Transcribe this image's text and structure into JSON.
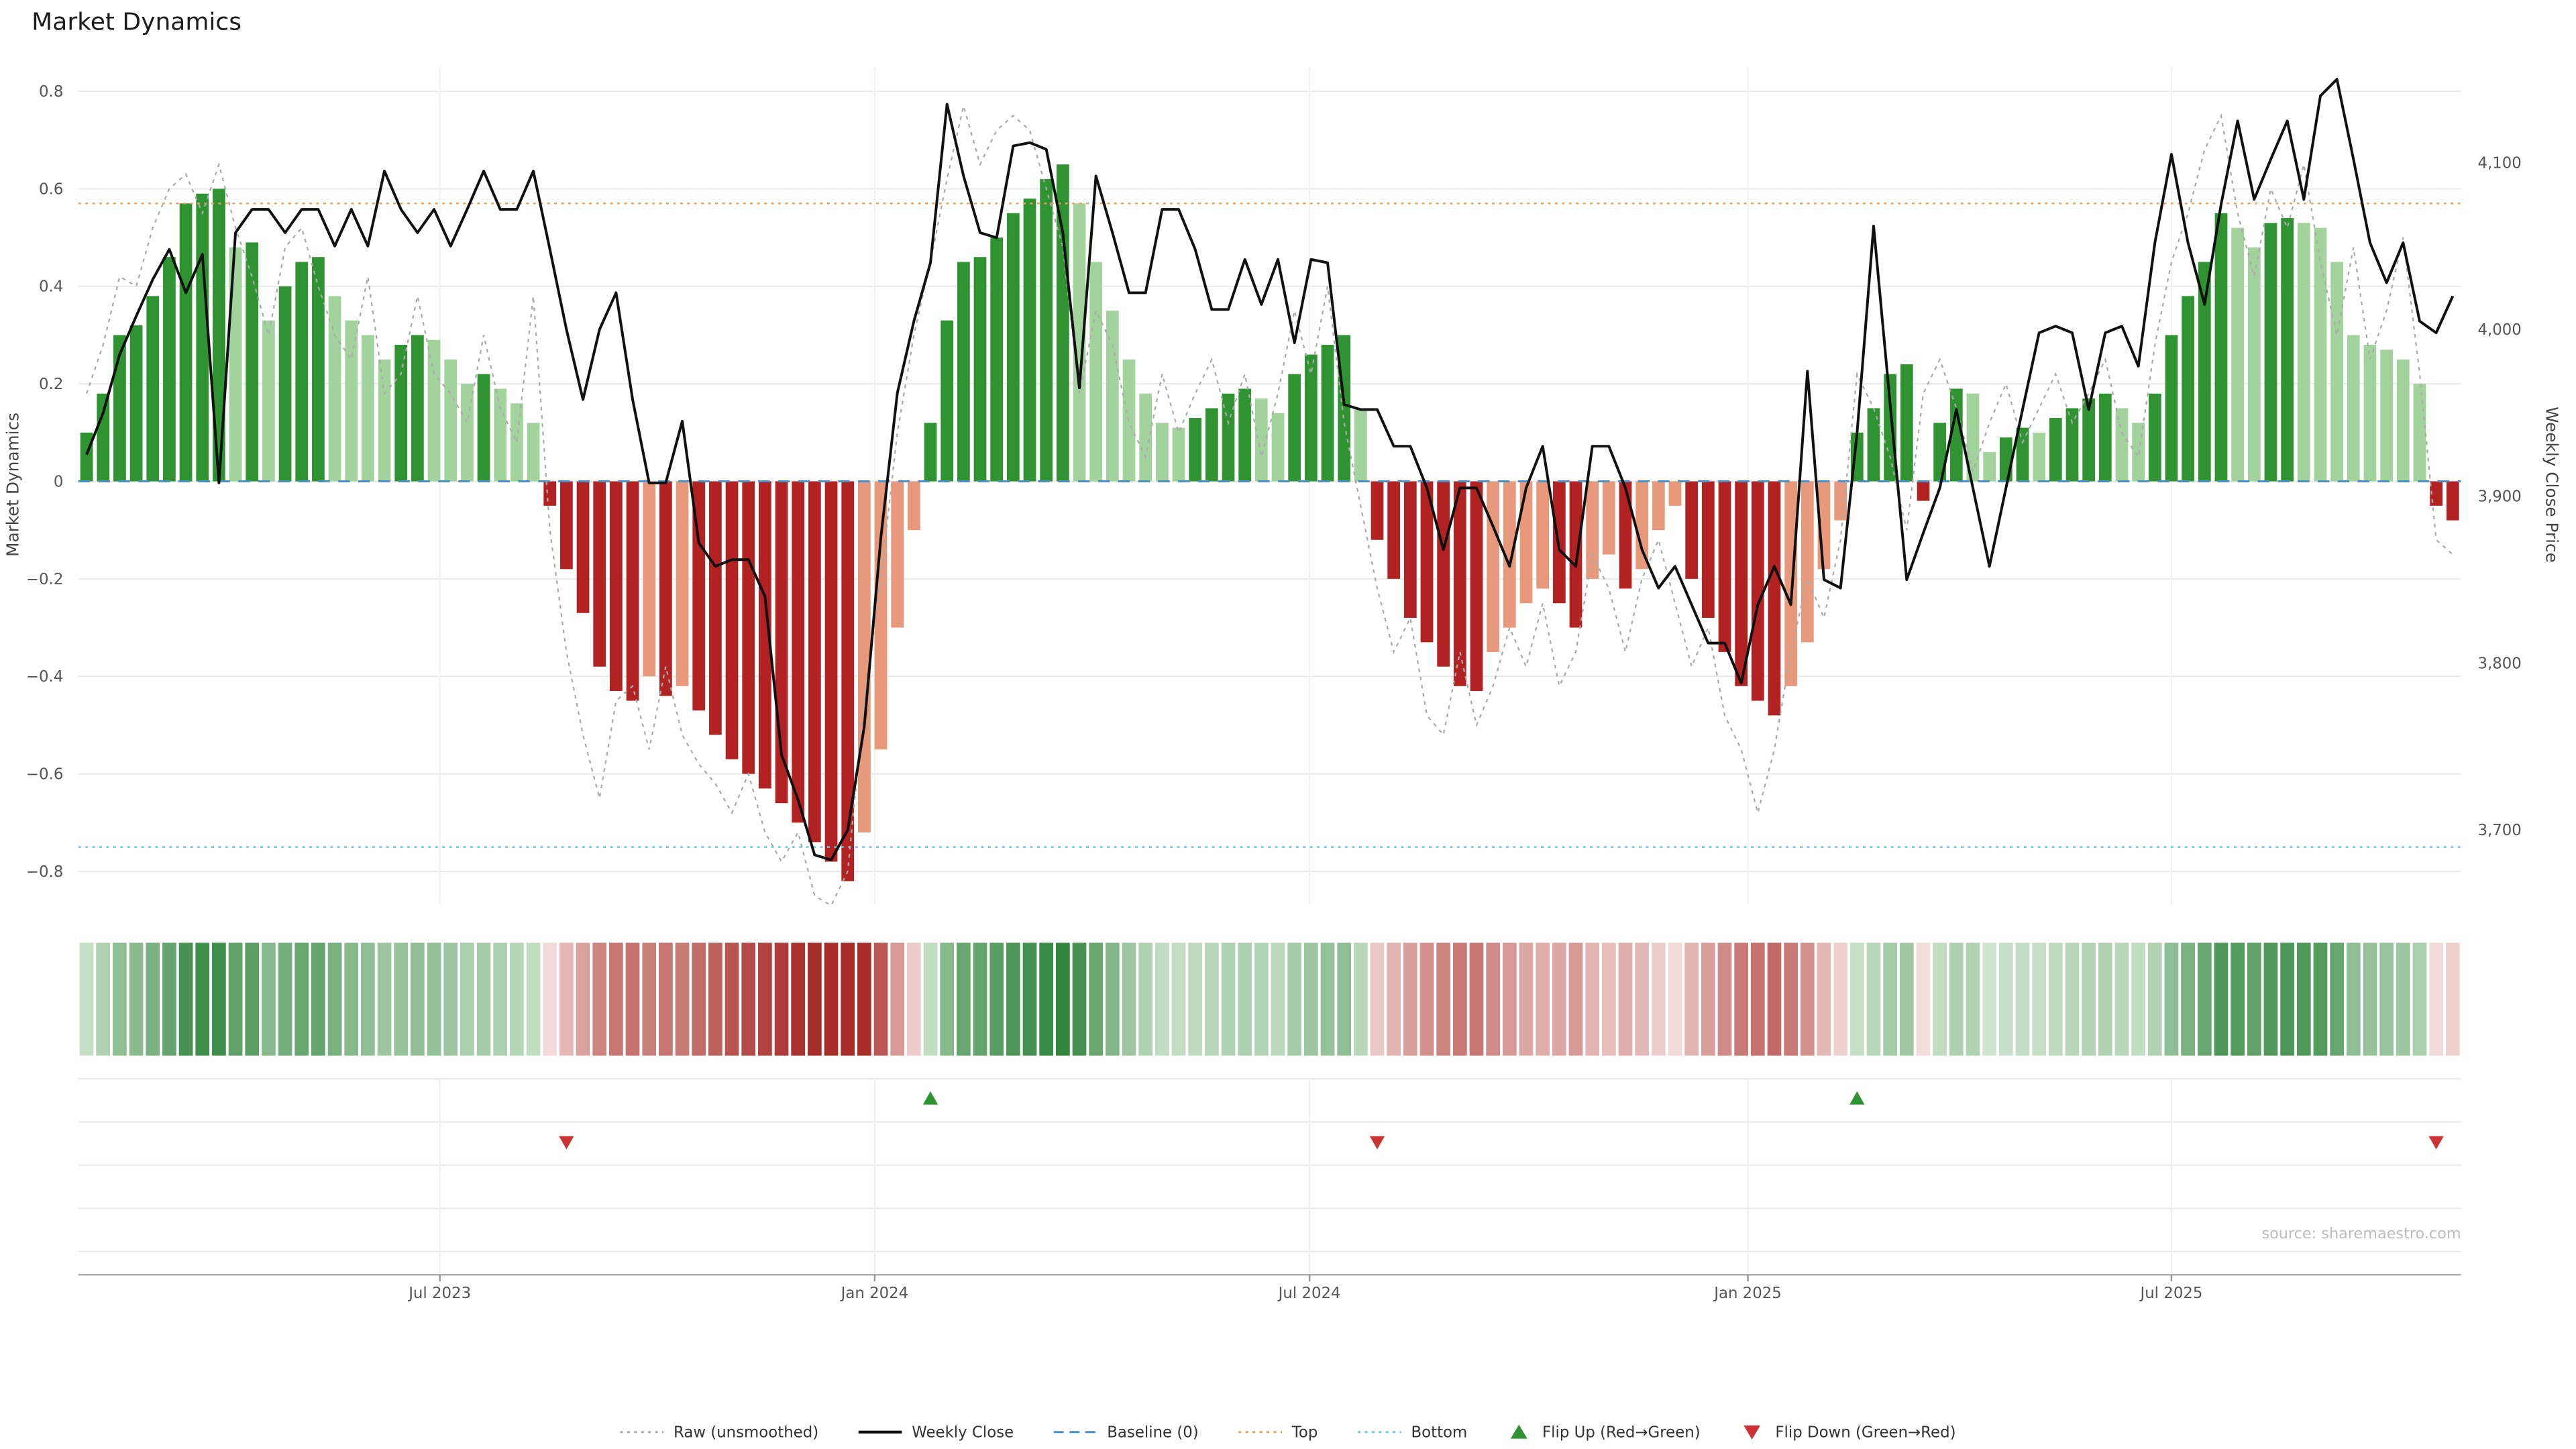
{
  "title": "Market Dynamics",
  "source": "source: sharemaestro.com",
  "legend": {
    "items": [
      {
        "label": "Raw (unsmoothed)",
        "type": "dotted-line",
        "color": "#aaaaaa",
        "icon": "raw-line-icon"
      },
      {
        "label": "Weekly Close",
        "type": "solid-line",
        "color": "#111111",
        "icon": "weekly-close-line-icon"
      },
      {
        "label": "Baseline (0)",
        "type": "dashed-line",
        "color": "#4a90c4",
        "icon": "baseline-line-icon"
      },
      {
        "label": "Top",
        "type": "dotted-line",
        "color": "#e2a566",
        "icon": "top-line-icon"
      },
      {
        "label": "Bottom",
        "type": "dotted-line",
        "color": "#70c6de",
        "icon": "bottom-line-icon"
      },
      {
        "label": "Flip Up (Red→Green)",
        "type": "triangle-up",
        "color": "#2f9331",
        "icon": "flip-up-icon"
      },
      {
        "label": "Flip Down (Green→Red)",
        "type": "triangle-down",
        "color": "#cc3333",
        "icon": "flip-down-icon"
      }
    ]
  },
  "chart_data": {
    "type": "bar",
    "title": "Market Dynamics",
    "ylabel": "Market Dynamics",
    "y2label": "Weekly Close Price",
    "ylim": [
      -0.87,
      0.85
    ],
    "y2lim": [
      3660,
      4158
    ],
    "grid": true,
    "legend_position": "bottom",
    "yticks": [
      {
        "v": 0.8,
        "label": "0.8"
      },
      {
        "v": 0.6,
        "label": "0.6"
      },
      {
        "v": 0.4,
        "label": "0.4"
      },
      {
        "v": 0.2,
        "label": "0.2"
      },
      {
        "v": 0,
        "label": "0"
      },
      {
        "v": -0.2,
        "label": "−0.2"
      },
      {
        "v": -0.4,
        "label": "−0.4"
      },
      {
        "v": -0.6,
        "label": "−0.6"
      },
      {
        "v": -0.8,
        "label": "−0.8"
      }
    ],
    "y2ticks": [
      {
        "v": 4100,
        "label": "4,100"
      },
      {
        "v": 4000,
        "label": "4,000"
      },
      {
        "v": 3900,
        "label": "3,900"
      },
      {
        "v": 3800,
        "label": "3,800"
      },
      {
        "v": 3700,
        "label": "3,700"
      }
    ],
    "xticks": [
      {
        "label": "Jul 2023",
        "i": 21.85
      },
      {
        "label": "Jan 2024",
        "i": 48.13
      },
      {
        "label": "Jul 2024",
        "i": 74.41
      },
      {
        "label": "Jan 2025",
        "i": 100.9
      },
      {
        "label": "Jul 2025",
        "i": 126.5
      }
    ],
    "baseline": 0,
    "top_threshold": 0.57,
    "bottom_threshold": -0.75,
    "flip_up_indices": [
      51,
      107
    ],
    "flip_down_indices": [
      29,
      78,
      142
    ],
    "colors": {
      "pos_strong": "#2f9331",
      "pos_weak": "#a3d39c",
      "neg_strong": "#b22222",
      "neg_weak": "#e8997b",
      "close": "#111111",
      "raw": "#aaaaaa",
      "baseline": "#4a90c4",
      "top": "#e2a566",
      "bottom": "#70c6de",
      "flip_up": "#2f9331",
      "flip_down": "#cc3333"
    },
    "series": {
      "bars": [
        0.1,
        0.18,
        0.3,
        0.32,
        0.38,
        0.46,
        0.57,
        0.59,
        0.6,
        0.48,
        0.49,
        0.33,
        0.4,
        0.45,
        0.46,
        0.38,
        0.33,
        0.3,
        0.25,
        0.28,
        0.3,
        0.29,
        0.25,
        0.2,
        0.22,
        0.19,
        0.16,
        0.12,
        -0.05,
        -0.18,
        -0.27,
        -0.38,
        -0.43,
        -0.45,
        -0.4,
        -0.44,
        -0.42,
        -0.47,
        -0.52,
        -0.57,
        -0.6,
        -0.63,
        -0.66,
        -0.7,
        -0.74,
        -0.78,
        -0.82,
        -0.72,
        -0.55,
        -0.3,
        -0.1,
        0.12,
        0.33,
        0.45,
        0.46,
        0.5,
        0.55,
        0.58,
        0.62,
        0.65,
        0.57,
        0.45,
        0.35,
        0.25,
        0.18,
        0.12,
        0.11,
        0.13,
        0.15,
        0.18,
        0.19,
        0.17,
        0.14,
        0.22,
        0.26,
        0.28,
        0.3,
        0.15,
        -0.12,
        -0.2,
        -0.28,
        -0.33,
        -0.38,
        -0.42,
        -0.43,
        -0.35,
        -0.3,
        -0.25,
        -0.22,
        -0.25,
        -0.3,
        -0.2,
        -0.15,
        -0.22,
        -0.18,
        -0.1,
        -0.05,
        -0.2,
        -0.28,
        -0.35,
        -0.42,
        -0.45,
        -0.48,
        -0.42,
        -0.33,
        -0.18,
        -0.08,
        0.1,
        0.15,
        0.22,
        0.24,
        -0.04,
        0.12,
        0.19,
        0.18,
        0.06,
        0.09,
        0.11,
        0.1,
        0.13,
        0.15,
        0.17,
        0.18,
        0.15,
        0.12,
        0.18,
        0.3,
        0.38,
        0.45,
        0.55,
        0.52,
        0.48,
        0.53,
        0.54,
        0.53,
        0.52,
        0.45,
        0.3,
        0.28,
        0.27,
        0.25,
        0.2,
        -0.05,
        -0.08
      ],
      "weekly_close": [
        3925,
        3950,
        3985,
        4008,
        4030,
        4048,
        4022,
        4045,
        3908,
        4058,
        4072,
        4072,
        4058,
        4072,
        4072,
        4050,
        4072,
        4050,
        4095,
        4072,
        4058,
        4072,
        4050,
        4072,
        4095,
        4072,
        4072,
        4095,
        4048,
        4000,
        3958,
        4000,
        4022,
        3958,
        3908,
        3908,
        3945,
        3872,
        3858,
        3862,
        3862,
        3840,
        3745,
        3718,
        3685,
        3682,
        3700,
        3762,
        3875,
        3962,
        4005,
        4040,
        4135,
        4092,
        4058,
        4055,
        4110,
        4112,
        4108,
        4058,
        3965,
        4092,
        4058,
        4022,
        4022,
        4072,
        4072,
        4048,
        4012,
        4012,
        4042,
        4015,
        4042,
        3992,
        4042,
        4040,
        3955,
        3952,
        3952,
        3930,
        3930,
        3905,
        3868,
        3905,
        3905,
        3882,
        3858,
        3905,
        3930,
        3868,
        3858,
        3930,
        3930,
        3905,
        3868,
        3845,
        3858,
        3835,
        3812,
        3812,
        3788,
        3835,
        3858,
        3835,
        3975,
        3850,
        3845,
        3938,
        4062,
        3955,
        3850,
        3878,
        3905,
        3952,
        3905,
        3858,
        3905,
        3952,
        3998,
        4002,
        3998,
        3952,
        3998,
        4002,
        3978,
        4052,
        4105,
        4052,
        4015,
        4075,
        4125,
        4078,
        4102,
        4125,
        4078,
        4140,
        4150,
        4102,
        4052,
        4028,
        4052,
        4005,
        3998,
        4020
      ],
      "raw": [
        0.18,
        0.28,
        0.42,
        0.4,
        0.52,
        0.6,
        0.63,
        0.55,
        0.65,
        0.52,
        0.42,
        0.3,
        0.48,
        0.52,
        0.4,
        0.3,
        0.25,
        0.42,
        0.18,
        0.22,
        0.38,
        0.22,
        0.18,
        0.12,
        0.3,
        0.15,
        0.08,
        0.38,
        -0.1,
        -0.35,
        -0.52,
        -0.65,
        -0.45,
        -0.42,
        -0.55,
        -0.38,
        -0.52,
        -0.58,
        -0.62,
        -0.68,
        -0.6,
        -0.72,
        -0.78,
        -0.72,
        -0.85,
        -0.87,
        -0.8,
        -0.45,
        -0.2,
        0.1,
        0.3,
        0.45,
        0.62,
        0.77,
        0.65,
        0.72,
        0.75,
        0.72,
        0.6,
        0.48,
        0.18,
        0.35,
        0.28,
        0.12,
        0.05,
        0.22,
        0.1,
        0.18,
        0.25,
        0.12,
        0.22,
        0.05,
        0.18,
        0.35,
        0.22,
        0.4,
        0.12,
        -0.05,
        -0.22,
        -0.35,
        -0.28,
        -0.48,
        -0.52,
        -0.35,
        -0.5,
        -0.42,
        -0.3,
        -0.38,
        -0.25,
        -0.42,
        -0.35,
        -0.15,
        -0.22,
        -0.35,
        -0.2,
        -0.12,
        -0.25,
        -0.38,
        -0.3,
        -0.48,
        -0.55,
        -0.68,
        -0.55,
        -0.35,
        -0.2,
        -0.28,
        -0.12,
        0.22,
        0.15,
        0.05,
        -0.1,
        0.18,
        0.25,
        0.15,
        0.02,
        0.12,
        0.2,
        0.08,
        0.15,
        0.22,
        0.12,
        0.18,
        0.25,
        0.1,
        0.05,
        0.28,
        0.45,
        0.55,
        0.68,
        0.75,
        0.55,
        0.42,
        0.6,
        0.52,
        0.65,
        0.45,
        0.3,
        0.48,
        0.25,
        0.35,
        0.5,
        0.22,
        -0.12,
        -0.15
      ]
    }
  }
}
